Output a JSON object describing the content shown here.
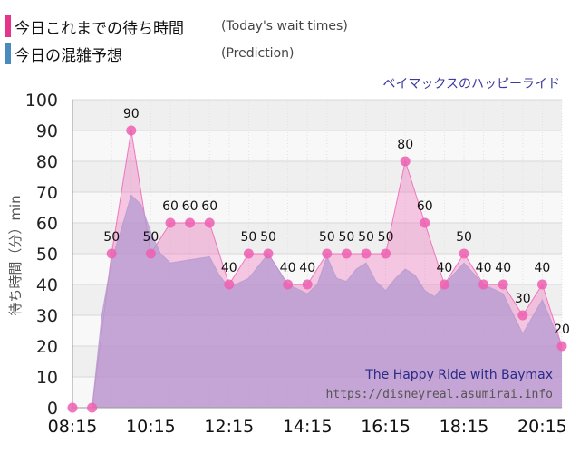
{
  "legend": [
    {
      "label": "今日これまでの待ち時間",
      "sub": "(Today's wait times)",
      "color": "#e4348b"
    },
    {
      "label": "今日の混雑予想",
      "sub": "(Prediction)",
      "color": "#4a8bbd"
    }
  ],
  "attraction": "ベイマックスのハッピーライド",
  "watermark": {
    "line1": "The Happy Ride with Baymax",
    "line2": "https://disneyreal.asumirai.info"
  },
  "chart_data": {
    "type": "area",
    "ylabel": "待ち時間（分）min",
    "ylim": [
      0,
      100
    ],
    "yticks": [
      "0",
      "10",
      "20",
      "30",
      "40",
      "50",
      "60",
      "70",
      "80",
      "90",
      "100"
    ],
    "xlim": [
      "08:15",
      "20:45"
    ],
    "xticks": [
      "08:15",
      "10:15",
      "12:15",
      "14:15",
      "16:15",
      "18:15",
      "20:15"
    ],
    "grid": true,
    "series": [
      {
        "name": "今日これまでの待ち時間",
        "kind": "actual",
        "color": "#f06ab8",
        "points": [
          {
            "x": "08:15",
            "y": 0,
            "label": ""
          },
          {
            "x": "08:45",
            "y": 0,
            "label": ""
          },
          {
            "x": "09:15",
            "y": 50,
            "label": "50"
          },
          {
            "x": "09:45",
            "y": 90,
            "label": "90"
          },
          {
            "x": "10:15",
            "y": 50,
            "label": "50"
          },
          {
            "x": "10:45",
            "y": 60,
            "label": "60"
          },
          {
            "x": "11:15",
            "y": 60,
            "label": "60"
          },
          {
            "x": "11:45",
            "y": 60,
            "label": "60"
          },
          {
            "x": "12:15",
            "y": 40,
            "label": "40"
          },
          {
            "x": "12:45",
            "y": 50,
            "label": "50"
          },
          {
            "x": "13:15",
            "y": 50,
            "label": "50"
          },
          {
            "x": "13:45",
            "y": 40,
            "label": "40"
          },
          {
            "x": "14:15",
            "y": 40,
            "label": "40"
          },
          {
            "x": "14:45",
            "y": 50,
            "label": "50"
          },
          {
            "x": "15:15",
            "y": 50,
            "label": "50"
          },
          {
            "x": "15:45",
            "y": 50,
            "label": "50"
          },
          {
            "x": "16:15",
            "y": 50,
            "label": "50"
          },
          {
            "x": "16:45",
            "y": 80,
            "label": "80"
          },
          {
            "x": "17:15",
            "y": 60,
            "label": "60"
          },
          {
            "x": "17:45",
            "y": 40,
            "label": "40"
          },
          {
            "x": "18:15",
            "y": 50,
            "label": "50"
          },
          {
            "x": "18:45",
            "y": 40,
            "label": "40"
          },
          {
            "x": "19:15",
            "y": 40,
            "label": "40"
          },
          {
            "x": "19:45",
            "y": 30,
            "label": "30"
          },
          {
            "x": "20:15",
            "y": 40,
            "label": "40"
          },
          {
            "x": "20:45",
            "y": 20,
            "label": "20"
          }
        ]
      },
      {
        "name": "今日の混雑予想",
        "kind": "prediction",
        "color": "#b49ad0",
        "points": [
          {
            "x": "08:15",
            "y": 0
          },
          {
            "x": "08:45",
            "y": 0
          },
          {
            "x": "09:00",
            "y": 30
          },
          {
            "x": "09:15",
            "y": 48
          },
          {
            "x": "09:30",
            "y": 58
          },
          {
            "x": "09:45",
            "y": 69
          },
          {
            "x": "10:00",
            "y": 66
          },
          {
            "x": "10:15",
            "y": 57
          },
          {
            "x": "10:30",
            "y": 50
          },
          {
            "x": "10:45",
            "y": 47
          },
          {
            "x": "11:15",
            "y": 48
          },
          {
            "x": "11:45",
            "y": 49
          },
          {
            "x": "12:00",
            "y": 43
          },
          {
            "x": "12:15",
            "y": 39
          },
          {
            "x": "12:45",
            "y": 42
          },
          {
            "x": "13:15",
            "y": 50
          },
          {
            "x": "13:30",
            "y": 45
          },
          {
            "x": "13:45",
            "y": 40
          },
          {
            "x": "14:15",
            "y": 37
          },
          {
            "x": "14:30",
            "y": 40
          },
          {
            "x": "14:45",
            "y": 49
          },
          {
            "x": "15:00",
            "y": 42
          },
          {
            "x": "15:15",
            "y": 41
          },
          {
            "x": "15:30",
            "y": 45
          },
          {
            "x": "15:45",
            "y": 47
          },
          {
            "x": "16:00",
            "y": 41
          },
          {
            "x": "16:15",
            "y": 38
          },
          {
            "x": "16:30",
            "y": 42
          },
          {
            "x": "16:45",
            "y": 45
          },
          {
            "x": "17:00",
            "y": 43
          },
          {
            "x": "17:15",
            "y": 38
          },
          {
            "x": "17:30",
            "y": 36
          },
          {
            "x": "17:45",
            "y": 40
          },
          {
            "x": "18:15",
            "y": 47
          },
          {
            "x": "18:45",
            "y": 40
          },
          {
            "x": "19:15",
            "y": 37
          },
          {
            "x": "19:45",
            "y": 24
          },
          {
            "x": "20:15",
            "y": 35
          },
          {
            "x": "20:45",
            "y": 20
          }
        ]
      }
    ]
  }
}
